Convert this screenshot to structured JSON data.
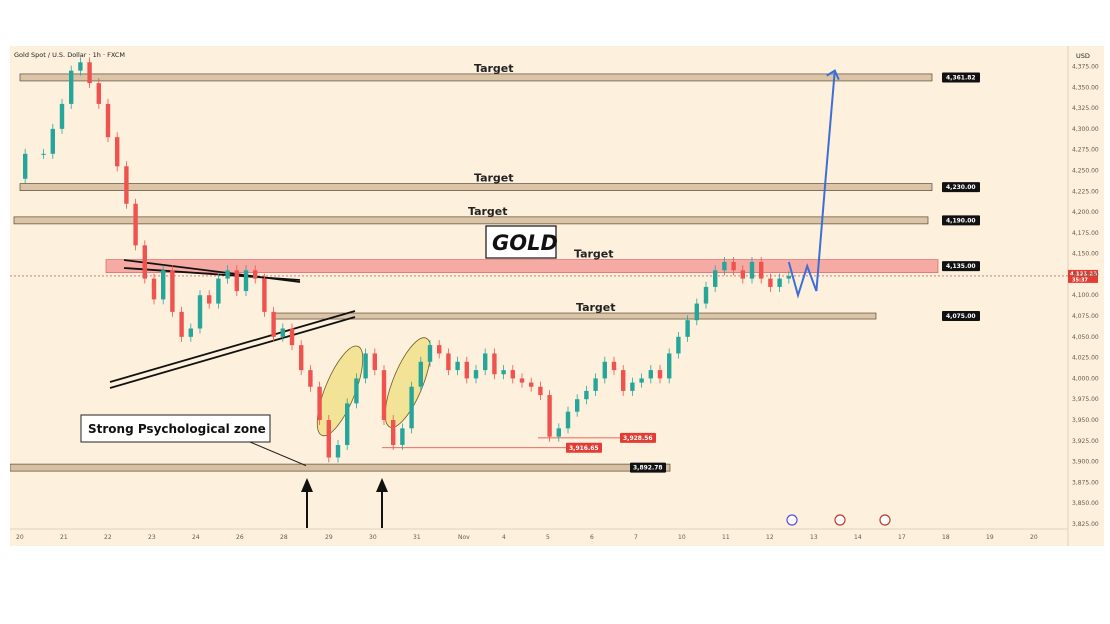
{
  "header": {
    "symbol_text": "Gold Spot / U.S. Dollar · 1h · FXCM",
    "currency": "USD"
  },
  "chart_data": {
    "type": "line",
    "title": "GOLD",
    "xlabel": "",
    "ylabel": "",
    "x_ticks": [
      "20",
      "21",
      "22",
      "23",
      "24",
      "26",
      "28",
      "29",
      "30",
      "31",
      "Nov",
      "4",
      "5",
      "6",
      "7",
      "10",
      "11",
      "12",
      "13",
      "14",
      "17",
      "18",
      "19",
      "20"
    ],
    "y_ticks": [
      "4,375.00",
      "4,350.00",
      "4,325.00",
      "4,300.00",
      "4,275.00",
      "4,250.00",
      "4,225.00",
      "4,200.00",
      "4,175.00",
      "4,150.00",
      "4,125.00",
      "4,100.00",
      "4,075.00",
      "4,050.00",
      "4,025.00",
      "4,000.00",
      "3,975.00",
      "3,950.00",
      "3,925.00",
      "3,900.00",
      "3,875.00",
      "3,850.00",
      "3,825.00"
    ],
    "ylim": [
      3825,
      4390
    ],
    "grid": false,
    "current_price": {
      "value": "4,123.23",
      "countdown": "35:37"
    },
    "price_series": {
      "name": "",
      "points": [
        [
          0,
          4240
        ],
        [
          1,
          4270
        ],
        [
          3,
          4270
        ],
        [
          4,
          4300
        ],
        [
          5,
          4330
        ],
        [
          6,
          4370
        ],
        [
          7,
          4380
        ],
        [
          8,
          4355
        ],
        [
          9,
          4330
        ],
        [
          10,
          4290
        ],
        [
          11,
          4255
        ],
        [
          12,
          4210
        ],
        [
          13,
          4160
        ],
        [
          14,
          4120
        ],
        [
          15,
          4095
        ],
        [
          16,
          4130
        ],
        [
          17,
          4080
        ],
        [
          18,
          4050
        ],
        [
          19,
          4060
        ],
        [
          20,
          4100
        ],
        [
          21,
          4090
        ],
        [
          22,
          4120
        ],
        [
          23,
          4130
        ],
        [
          24,
          4105
        ],
        [
          25,
          4130
        ],
        [
          26,
          4120
        ],
        [
          27,
          4080
        ],
        [
          28,
          4050
        ],
        [
          29,
          4060
        ],
        [
          30,
          4040
        ],
        [
          31,
          4010
        ],
        [
          32,
          3990
        ],
        [
          33,
          3950
        ],
        [
          34,
          3905
        ],
        [
          35,
          3920
        ],
        [
          36,
          3970
        ],
        [
          37,
          4000
        ],
        [
          38,
          4030
        ],
        [
          39,
          4010
        ],
        [
          40,
          3950
        ],
        [
          41,
          3920
        ],
        [
          42,
          3940
        ],
        [
          43,
          3990
        ],
        [
          44,
          4020
        ],
        [
          45,
          4040
        ],
        [
          46,
          4030
        ],
        [
          47,
          4010
        ],
        [
          48,
          4020
        ],
        [
          49,
          4000
        ],
        [
          50,
          4010
        ],
        [
          51,
          4030
        ],
        [
          52,
          4005
        ],
        [
          53,
          4010
        ],
        [
          54,
          4000
        ],
        [
          55,
          3995
        ],
        [
          56,
          3990
        ],
        [
          57,
          3980
        ],
        [
          58,
          3930
        ],
        [
          59,
          3940
        ],
        [
          60,
          3960
        ],
        [
          61,
          3975
        ],
        [
          62,
          3985
        ],
        [
          63,
          4000
        ],
        [
          64,
          4020
        ],
        [
          65,
          4010
        ],
        [
          66,
          3985
        ],
        [
          67,
          3995
        ],
        [
          68,
          4000
        ],
        [
          69,
          4010
        ],
        [
          70,
          4000
        ],
        [
          71,
          4030
        ],
        [
          72,
          4050
        ],
        [
          73,
          4070
        ],
        [
          74,
          4090
        ],
        [
          75,
          4110
        ],
        [
          76,
          4130
        ],
        [
          77,
          4140
        ],
        [
          78,
          4130
        ],
        [
          79,
          4120
        ],
        [
          80,
          4140
        ],
        [
          81,
          4120
        ],
        [
          82,
          4110
        ],
        [
          83,
          4120
        ],
        [
          84,
          4123
        ]
      ]
    },
    "projection": {
      "points": [
        [
          84,
          4140
        ],
        [
          85,
          4100
        ],
        [
          86,
          4135
        ],
        [
          87,
          4105
        ],
        [
          88,
          4240
        ],
        [
          89,
          4370
        ]
      ]
    },
    "levels": [
      {
        "label": "Target",
        "value": 4361.82,
        "tag": "4,361.82"
      },
      {
        "label": "Target",
        "value": 4230.0,
        "tag": "4,230.00"
      },
      {
        "label": "Target",
        "value": 4190.0,
        "tag": "4,190.00"
      },
      {
        "label": "Target",
        "value": 4135.0,
        "tag": "4,135.00"
      },
      {
        "label": "Target",
        "value": 4075.0,
        "tag": "4,075.00"
      }
    ],
    "support": {
      "value": 3892.78,
      "tag": "3,892.78"
    },
    "lows": [
      {
        "value": 3916.65,
        "tag": "3,916.65"
      },
      {
        "value": 3928.56,
        "tag": "3,928.56"
      }
    ],
    "annotations": {
      "callout": "Strong Psychological zone"
    },
    "colors": {
      "bull": "#26a69a",
      "bear": "#ef5350",
      "projection": "#3c6fd6",
      "resistance": "#f28b8b",
      "zone": "#d8bfa1",
      "highlight": "#f0e18a",
      "tag_bg": "#111111",
      "tag_red": "#e23d35"
    }
  }
}
